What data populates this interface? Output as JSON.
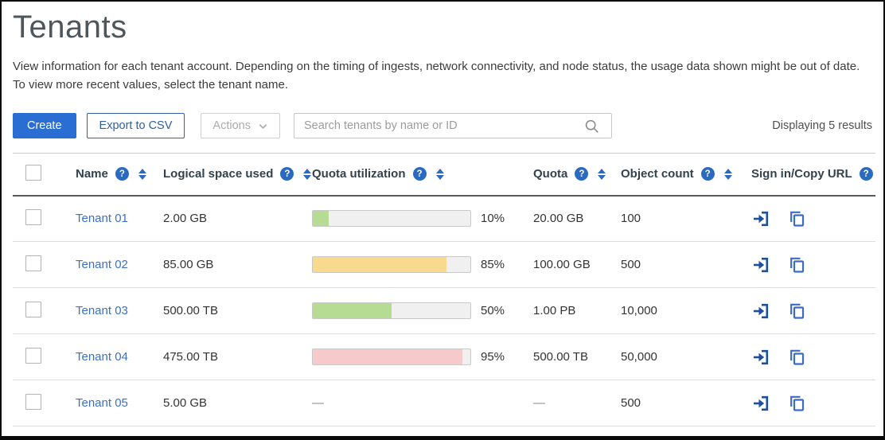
{
  "page": {
    "title": "Tenants",
    "description_line1": "View information for each tenant account. Depending on the timing of ingests, network connectivity, and node status, the usage data shown might be out of date.",
    "description_line2": "To view more recent values, select the tenant name."
  },
  "toolbar": {
    "create_label": "Create",
    "export_label": "Export to CSV",
    "actions_label": "Actions",
    "search_placeholder": "Search tenants by name or ID",
    "results_text": "Displaying 5 results"
  },
  "table": {
    "columns": [
      {
        "label": "Name"
      },
      {
        "label": "Logical space used"
      },
      {
        "label": "Quota utilization"
      },
      {
        "label": "Quota"
      },
      {
        "label": "Object count"
      },
      {
        "label": "Sign in/Copy URL"
      }
    ],
    "rows": [
      {
        "name": "Tenant 01",
        "logical_space": "2.00 GB",
        "utilization_pct": 10,
        "utilization_label": "10%",
        "bar_color": "#b5dc92",
        "quota": "20.00 GB",
        "object_count": "100"
      },
      {
        "name": "Tenant 02",
        "logical_space": "85.00 GB",
        "utilization_pct": 85,
        "utilization_label": "85%",
        "bar_color": "#f8d98d",
        "quota": "100.00 GB",
        "object_count": "500"
      },
      {
        "name": "Tenant 03",
        "logical_space": "500.00 TB",
        "utilization_pct": 50,
        "utilization_label": "50%",
        "bar_color": "#b5dc92",
        "quota": "1.00 PB",
        "object_count": "10,000"
      },
      {
        "name": "Tenant 04",
        "logical_space": "475.00 TB",
        "utilization_pct": 95,
        "utilization_label": "95%",
        "bar_color": "#f6caca",
        "quota": "500.00 TB",
        "object_count": "50,000"
      },
      {
        "name": "Tenant 05",
        "logical_space": "5.00 GB",
        "utilization_pct": null,
        "utilization_label": "—",
        "bar_color": null,
        "quota": "—",
        "object_count": "500"
      }
    ],
    "empty_placeholder": "—"
  },
  "colors": {
    "primary_button": "#2a6ed4",
    "link_blue": "#3a70c6",
    "help_icon_blue": "#2a6bbf",
    "bar_green": "#b5dc92",
    "bar_yellow": "#f8d98d",
    "bar_red": "#f6caca",
    "signin_icon_blue": "#1c4f9e",
    "copy_icon_blue": "#3a6cc4"
  }
}
